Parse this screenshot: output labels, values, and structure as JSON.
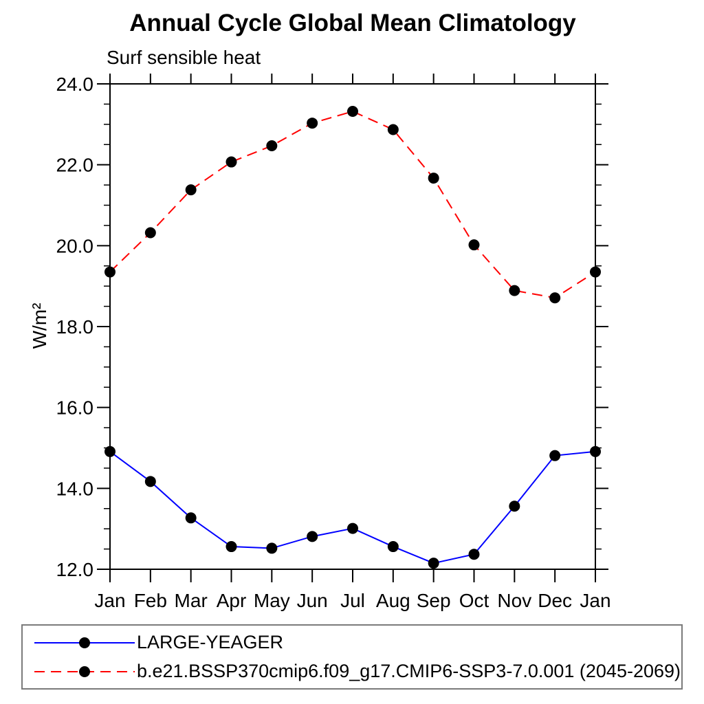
{
  "page": {
    "background": "#ffffff"
  },
  "chart_data": {
    "type": "line",
    "title": "Annual Cycle Global Mean Climatology",
    "subtitle": "Surf sensible heat",
    "ylabel": "W/m²",
    "xlabel": "",
    "categories": [
      "Jan",
      "Feb",
      "Mar",
      "Apr",
      "May",
      "Jun",
      "Jul",
      "Aug",
      "Sep",
      "Oct",
      "Nov",
      "Dec",
      "Jan"
    ],
    "ylim": [
      12.0,
      24.0
    ],
    "y_major_tick_step": 2.0,
    "y_minor_tick_step": 0.5,
    "y_tick_labels": [
      "12.0",
      "14.0",
      "16.0",
      "18.0",
      "20.0",
      "22.0",
      "24.0"
    ],
    "grid": false,
    "legend_position": "bottom-left-box",
    "axis_color": "#000000",
    "series": [
      {
        "name": "LARGE-YEAGER",
        "color": "#0000ff",
        "line_style": "solid",
        "marker": "filled-circle",
        "marker_color": "#000000",
        "values": [
          14.91,
          14.17,
          13.27,
          12.56,
          12.52,
          12.81,
          13.01,
          12.56,
          12.15,
          12.37,
          13.56,
          14.81,
          14.91
        ]
      },
      {
        "name": "b.e21.BSSP370cmip6.f09_g17.CMIP6-SSP3-7.0.001 (2045-2069)",
        "color": "#ff0000",
        "line_style": "dashed",
        "marker": "filled-circle",
        "marker_color": "#000000",
        "values": [
          19.35,
          20.32,
          21.38,
          22.07,
          22.47,
          23.03,
          23.32,
          22.87,
          21.67,
          20.02,
          18.89,
          18.71,
          19.35
        ]
      }
    ]
  }
}
